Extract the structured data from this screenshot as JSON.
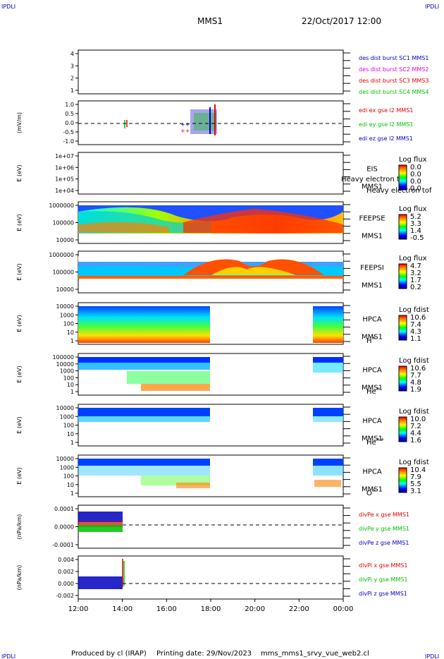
{
  "header": {
    "corner_left": "IPDLI",
    "corner_right": "IPDLI",
    "title": "MMS1",
    "date": "22/Oct/2017 12:00"
  },
  "footer": {
    "produced_by": "Produced by cl (IRAP)",
    "printing_date": "Printing date: 29/Nov/2023",
    "filename": "mms_mms1_srvy_vue_web2.cl",
    "corner_left": "IPDLI",
    "corner_right": "IPDLI"
  },
  "colors": {
    "red": "#e00000",
    "green": "#00c000",
    "blue": "#0000c0",
    "magenta": "#e000e0"
  },
  "chart_data": [
    {
      "type": "line",
      "panel": "des-dist-burst",
      "yticks": [
        "4",
        "3",
        "2",
        "1"
      ],
      "ylim": [
        0.6,
        4.3
      ],
      "legend": [
        {
          "label": "des dist burst SC1 MMS1",
          "color": "#0000c0"
        },
        {
          "label": "des dist burst SC2 MMS2",
          "color": "#e000e0"
        },
        {
          "label": "des dist burst SC3 MMS3",
          "color": "#e00000"
        },
        {
          "label": "des dist burst SC4 MMS4",
          "color": "#00c000"
        }
      ]
    },
    {
      "type": "line",
      "panel": "edi-e",
      "ylabel": "(mV/m)",
      "yticks": [
        "1.0",
        "0.5",
        "0.0",
        "-0.5",
        "-1.0"
      ],
      "ylim": [
        -1.3,
        1.3
      ],
      "series": [
        {
          "name": "edi ex gse l2 MMS1",
          "color": "#e00000"
        },
        {
          "name": "edi ey gse l2 MMS1",
          "color": "#00c000"
        },
        {
          "name": "edi ez gse l2 MMS1",
          "color": "#0000c0"
        }
      ]
    },
    {
      "type": "heatmap",
      "panel": "eis",
      "ylabel": "E (eV)",
      "yticks": [
        "1e+07",
        "1e+06",
        "1e+05",
        "1e+04"
      ],
      "instrument": "EIS",
      "species": "Heavy electron tof",
      "spacecraft": "MMS1",
      "colorbar_title": "Log flux",
      "colorbar_ticks": [
        "0.0",
        "0.0",
        "0.0",
        "0.0"
      ]
    },
    {
      "type": "heatmap",
      "panel": "feepse",
      "ylabel": "E (eV)",
      "yticks": [
        "1000000",
        "100000",
        "10000"
      ],
      "instrument": "FEEPSE",
      "spacecraft": "MMS1",
      "colorbar_title": "Log flux",
      "colorbar_ticks": [
        "5.2",
        "3.3",
        "1.4",
        "-0.5"
      ]
    },
    {
      "type": "heatmap",
      "panel": "feepsi",
      "ylabel": "E (eV)",
      "yticks": [
        "1000000",
        "100000",
        "10000"
      ],
      "instrument": "FEEPSI",
      "spacecraft": "MMS1",
      "colorbar_title": "Log flux",
      "colorbar_ticks": [
        "4.7",
        "3.2",
        "1.7",
        "0.2"
      ]
    },
    {
      "type": "heatmap",
      "panel": "hpca-h",
      "ylabel": "E (eV)",
      "yticks": [
        "10000",
        "1000",
        "100",
        "10",
        "1"
      ],
      "instrument": "HPCA",
      "spacecraft": "MMS1",
      "species": "H",
      "species_sup": "+",
      "colorbar_title": "Log fdist",
      "colorbar_ticks": [
        "10.6",
        "7.4",
        "4.3",
        "1.1"
      ]
    },
    {
      "type": "heatmap",
      "panel": "hpca-he",
      "ylabel": "E (eV)",
      "yticks": [
        "100000",
        "10000",
        "1000",
        "100",
        "10",
        "1"
      ],
      "instrument": "HPCA",
      "spacecraft": "MMS1",
      "species": "He",
      "species_sup": "+",
      "colorbar_title": "Log fdist",
      "colorbar_ticks": [
        "10.6",
        "7.7",
        "4.8",
        "1.9"
      ]
    },
    {
      "type": "heatmap",
      "panel": "hpca-hepp",
      "ylabel": "E (eV)",
      "yticks": [
        "10000",
        "1000",
        "100",
        "10",
        "1"
      ],
      "instrument": "HPCA",
      "spacecraft": "MMS1",
      "species": "He",
      "species_sup": "++",
      "colorbar_title": "Log fdist",
      "colorbar_ticks": [
        "10.0",
        "7.2",
        "4.4",
        "1.6"
      ]
    },
    {
      "type": "heatmap",
      "panel": "hpca-o",
      "ylabel": "E (eV)",
      "yticks": [
        "10000",
        "1000",
        "100",
        "10",
        "1"
      ],
      "instrument": "HPCA",
      "spacecraft": "MMS1",
      "species": "O",
      "species_sup": "+",
      "colorbar_title": "Log fdist",
      "colorbar_ticks": [
        "10.4",
        "7.9",
        "5.5",
        "3.1"
      ]
    },
    {
      "type": "line",
      "panel": "divpe",
      "ylabel": "(nPa/km)",
      "yticks": [
        "0.0001",
        "0.0000",
        "-0.0001"
      ],
      "ylim": [
        -0.00022,
        0.00017
      ],
      "series": [
        {
          "name": "divPe x gse MMS1",
          "color": "#e00000"
        },
        {
          "name": "divPe y gse MMS1",
          "color": "#00c000"
        },
        {
          "name": "divPe z gse MMS1",
          "color": "#0000c0"
        }
      ]
    },
    {
      "type": "line",
      "panel": "divpi",
      "ylabel": "(nPa/km)",
      "yticks": [
        "0.004",
        "0.002",
        "0.000",
        "-0.002"
      ],
      "ylim": [
        -0.0033,
        0.0056
      ],
      "series": [
        {
          "name": "divPi x gse MMS1",
          "color": "#e00000"
        },
        {
          "name": "divPi y gse MMS1",
          "color": "#00c000"
        },
        {
          "name": "divPi z gse MMS1",
          "color": "#0000c0"
        }
      ]
    }
  ],
  "x_axis": {
    "ticks": [
      "12:00",
      "14:00",
      "16:00",
      "18:00",
      "20:00",
      "22:00",
      "00:00"
    ]
  }
}
